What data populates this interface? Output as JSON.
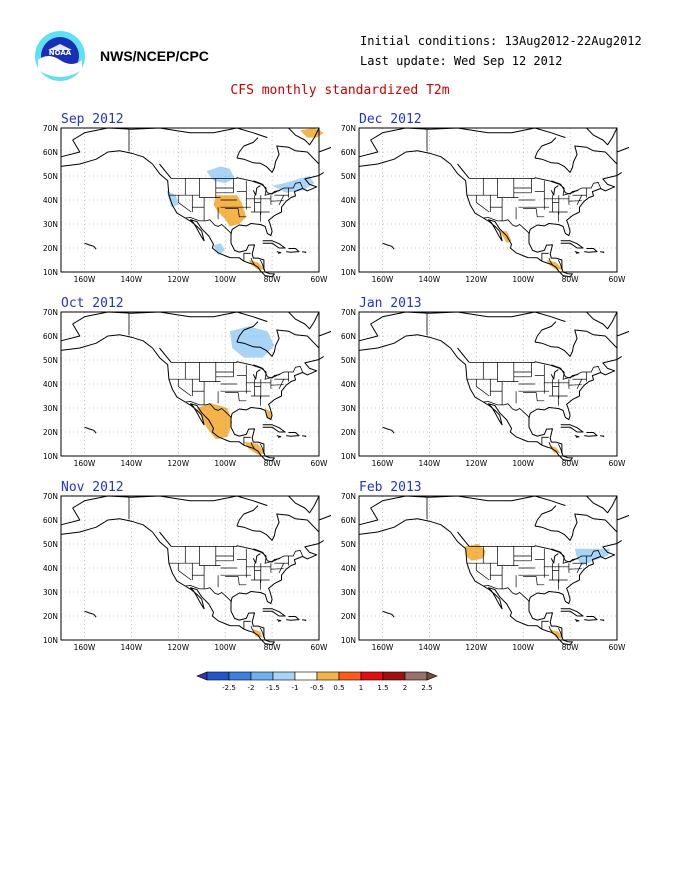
{
  "header": {
    "org": "NWS/NCEP/CPC",
    "initial_conditions": "Initial conditions: 13Aug2012-22Aug2012",
    "last_update": "Last update: Wed Sep 12 2012",
    "title": "CFS monthly standardized T2m",
    "logo_text": "NOAA"
  },
  "axes": {
    "lat_labels": [
      "70N",
      "60N",
      "50N",
      "40N",
      "30N",
      "20N",
      "10N"
    ],
    "lon_labels": [
      "160W",
      "140W",
      "120W",
      "100W",
      "80W",
      "60W"
    ]
  },
  "panels": [
    {
      "title": "Sep 2012",
      "anomalies": [
        {
          "value": "above 0.5",
          "region": "central US / Texas"
        },
        {
          "value": "below -0.5",
          "region": "northern plains / Manitoba"
        },
        {
          "value": "below -0.5",
          "region": "northeast US / Canadian Maritimes"
        },
        {
          "value": "above 0.5",
          "region": "Labrador Sea / Greenland"
        },
        {
          "value": "below -0.5",
          "region": "US west coast"
        },
        {
          "value": "below -0.5",
          "region": "Mexico"
        },
        {
          "value": "above 0.5",
          "region": "Central America"
        }
      ]
    },
    {
      "title": "Dec 2012",
      "anomalies": [
        {
          "value": "above 0.5",
          "region": "western Mexico"
        },
        {
          "value": "above 0.5",
          "region": "Central America"
        }
      ]
    },
    {
      "title": "Oct 2012",
      "anomalies": [
        {
          "value": "below -0.5",
          "region": "Hudson Bay / Ontario"
        },
        {
          "value": "above 0.5",
          "region": "Mexico"
        },
        {
          "value": "above 0.5",
          "region": "Florida"
        },
        {
          "value": "above 0.5",
          "region": "Central America"
        }
      ]
    },
    {
      "title": "Jan 2013",
      "anomalies": [
        {
          "value": "above 0.5",
          "region": "Central America"
        }
      ]
    },
    {
      "title": "Nov 2012",
      "anomalies": [
        {
          "value": "above 0.5",
          "region": "Central America"
        }
      ]
    },
    {
      "title": "Feb 2013",
      "anomalies": [
        {
          "value": "above 0.5",
          "region": "Pacific Northwest"
        },
        {
          "value": "below -0.5",
          "region": "northeast US / Canadian Maritimes"
        },
        {
          "value": "above 0.5",
          "region": "Central America"
        }
      ]
    }
  ],
  "colorbar": {
    "labels": [
      "-2.5",
      "-2",
      "-1.5",
      "-1",
      "-0.5",
      "0.5",
      "1",
      "1.5",
      "2",
      "2.5"
    ],
    "colors": [
      "#3b2fb0",
      "#2255cc",
      "#3f7fe0",
      "#6fb0f0",
      "#a8d4f8",
      "#ffffff",
      "#f4b44a",
      "#ff5a1e",
      "#e01010",
      "#a01010",
      "#9b6f6a",
      "#7a4a3a"
    ]
  },
  "colors": {
    "above": "#f4b44a",
    "below": "#a8d4f8",
    "title_red": "#cc0000",
    "panel_title": "#2233cc"
  }
}
